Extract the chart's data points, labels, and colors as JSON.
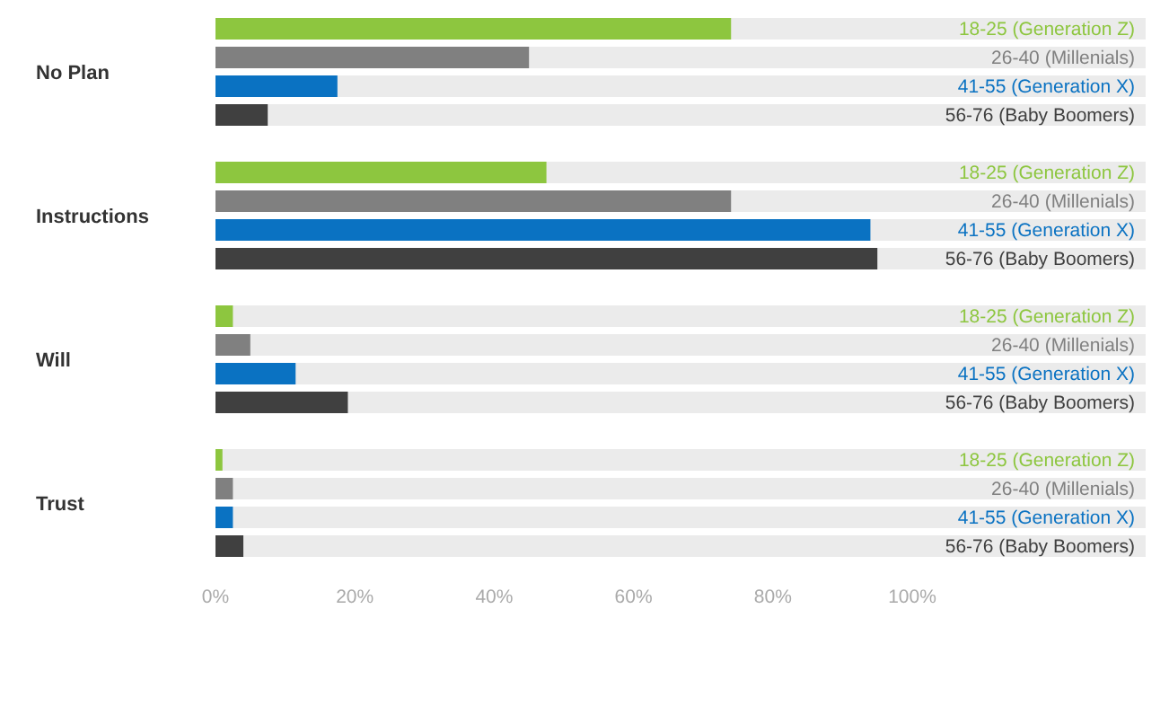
{
  "chart_data": {
    "type": "bar",
    "orientation": "horizontal",
    "categories": [
      "No Plan",
      "Instructions",
      "Will",
      "Trust"
    ],
    "series": [
      {
        "name": "18-25 (Generation Z)",
        "color": "#8dc63f",
        "values": [
          74,
          47.5,
          2.5,
          1
        ]
      },
      {
        "name": "26-40 (Millenials)",
        "color": "#808080",
        "values": [
          45,
          74,
          5,
          2.5
        ]
      },
      {
        "name": "41-55 (Generation X)",
        "color": "#0a72c2",
        "values": [
          17.5,
          94,
          11.5,
          2.5
        ]
      },
      {
        "name": "56-76 (Baby Boomers)",
        "color": "#404040",
        "values": [
          7.5,
          95,
          19,
          4
        ]
      }
    ],
    "xlim": [
      0,
      100
    ],
    "xticks": [
      {
        "value": 0,
        "label": "0%"
      },
      {
        "value": 20,
        "label": "20%"
      },
      {
        "value": 40,
        "label": "40%"
      },
      {
        "value": 60,
        "label": "60%"
      },
      {
        "value": 80,
        "label": "80%"
      },
      {
        "value": 100,
        "label": "100%"
      }
    ],
    "legend": false,
    "grid": false
  }
}
